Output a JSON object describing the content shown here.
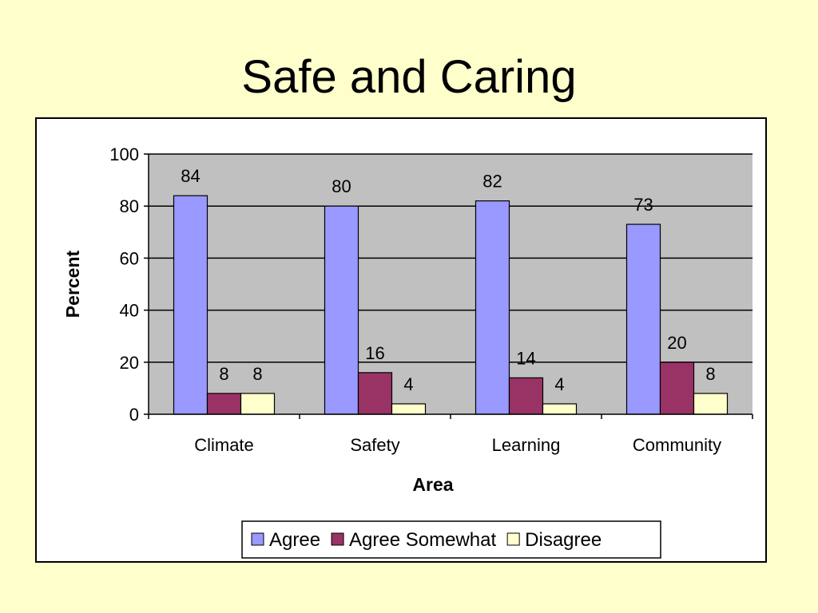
{
  "slide": {
    "title": "Safe and Caring"
  },
  "chart_data": {
    "type": "bar",
    "xlabel": "Area",
    "ylabel": "Percent",
    "ylim": [
      0,
      100
    ],
    "yticks": [
      0,
      20,
      40,
      60,
      80,
      100
    ],
    "grid": true,
    "legend_position": "bottom",
    "categories": [
      "Climate",
      "Safety",
      "Learning",
      "Community"
    ],
    "series": [
      {
        "name": "Agree",
        "values": [
          84,
          80,
          82,
          73
        ],
        "color": "#9999ff"
      },
      {
        "name": "Agree Somewhat",
        "values": [
          8,
          16,
          14,
          20
        ],
        "color": "#993366"
      },
      {
        "name": "Disagree",
        "values": [
          8,
          4,
          4,
          8
        ],
        "color": "#ffffcc"
      }
    ],
    "plot_background": "#c0c0c0"
  }
}
